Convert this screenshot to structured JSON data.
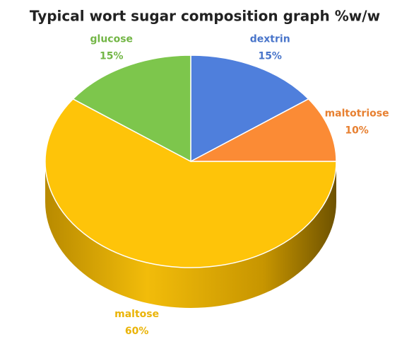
{
  "chart_data": {
    "type": "pie",
    "title": "Typical wort sugar composition graph %w/w",
    "categories": [
      "dextrin",
      "maltotriose",
      "maltose",
      "glucose"
    ],
    "values": [
      15,
      10,
      60,
      15
    ],
    "value_labels": [
      "15%",
      "10%",
      "60%",
      "15%"
    ],
    "colors": [
      "#4f7fdc",
      "#fb8b35",
      "#fec409",
      "#7dc64c"
    ]
  }
}
